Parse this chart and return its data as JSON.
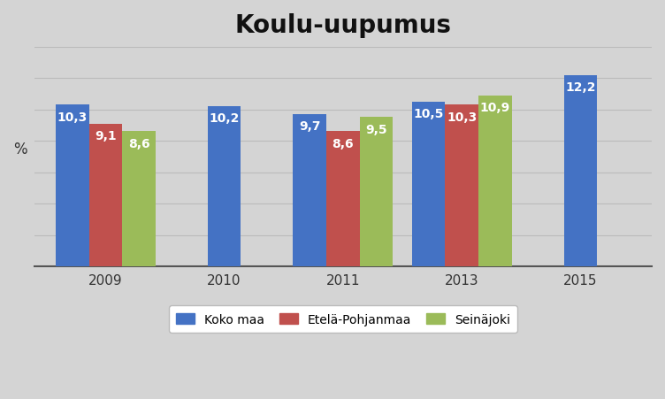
{
  "title": "Koulu-uupumus",
  "years": [
    2009,
    2010,
    2011,
    2013,
    2015
  ],
  "series": {
    "Koko maa": [
      10.3,
      10.2,
      9.7,
      10.5,
      12.2
    ],
    "Etelä-Pohjanmaa": [
      9.1,
      null,
      8.6,
      10.3,
      null
    ],
    "Seinäjoki": [
      8.6,
      null,
      9.5,
      10.9,
      null
    ]
  },
  "colors": {
    "Koko maa": "#4472C4",
    "Etelä-Pohjanmaa": "#C0504D",
    "Seinäjoki": "#9BBB59"
  },
  "ylabel": "%",
  "ylim": [
    0,
    14
  ],
  "bar_width": 0.28,
  "background_color": "#D4D4D4",
  "title_fontsize": 20,
  "label_fontsize": 10,
  "legend_fontsize": 10,
  "grid_color": "#BBBBBB",
  "yticks": [
    2,
    4,
    6,
    8,
    10,
    12,
    14
  ]
}
